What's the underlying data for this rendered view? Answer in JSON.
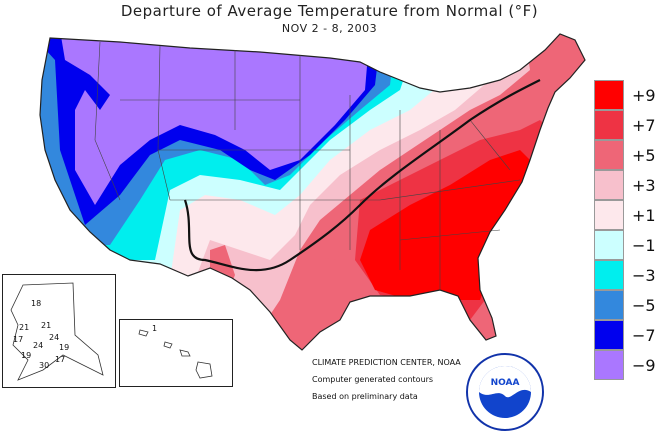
{
  "header": {
    "title": "Departure of Average Temperature from Normal (°F)",
    "subtitle": "NOV 2 - 8, 2003"
  },
  "legend": {
    "items": [
      {
        "label": "+9",
        "color": "#ff0000"
      },
      {
        "label": "+7",
        "color": "#ee3344"
      },
      {
        "label": "+5",
        "color": "#ee6677"
      },
      {
        "label": "+3",
        "color": "#f7c0cc"
      },
      {
        "label": "+1",
        "color": "#fde8ec"
      },
      {
        "label": "−1",
        "color": "#ccffff"
      },
      {
        "label": "−3",
        "color": "#00eeee"
      },
      {
        "label": "−5",
        "color": "#3388dd"
      },
      {
        "label": "−7",
        "color": "#0000ee"
      },
      {
        "label": "−9",
        "color": "#aa77ff"
      }
    ]
  },
  "credits": {
    "center": "CLIMATE PREDICTION CENTER, NOAA",
    "line1": "Computer generated contours",
    "line2": "Based on preliminary data"
  },
  "alaska": {
    "labels": [
      "18",
      "21",
      "21",
      "24",
      "17",
      "24",
      "19",
      "19",
      "17",
      "30"
    ]
  },
  "hawaii": {
    "labels": [
      "1"
    ]
  },
  "logo": {
    "text": "NOAA"
  }
}
